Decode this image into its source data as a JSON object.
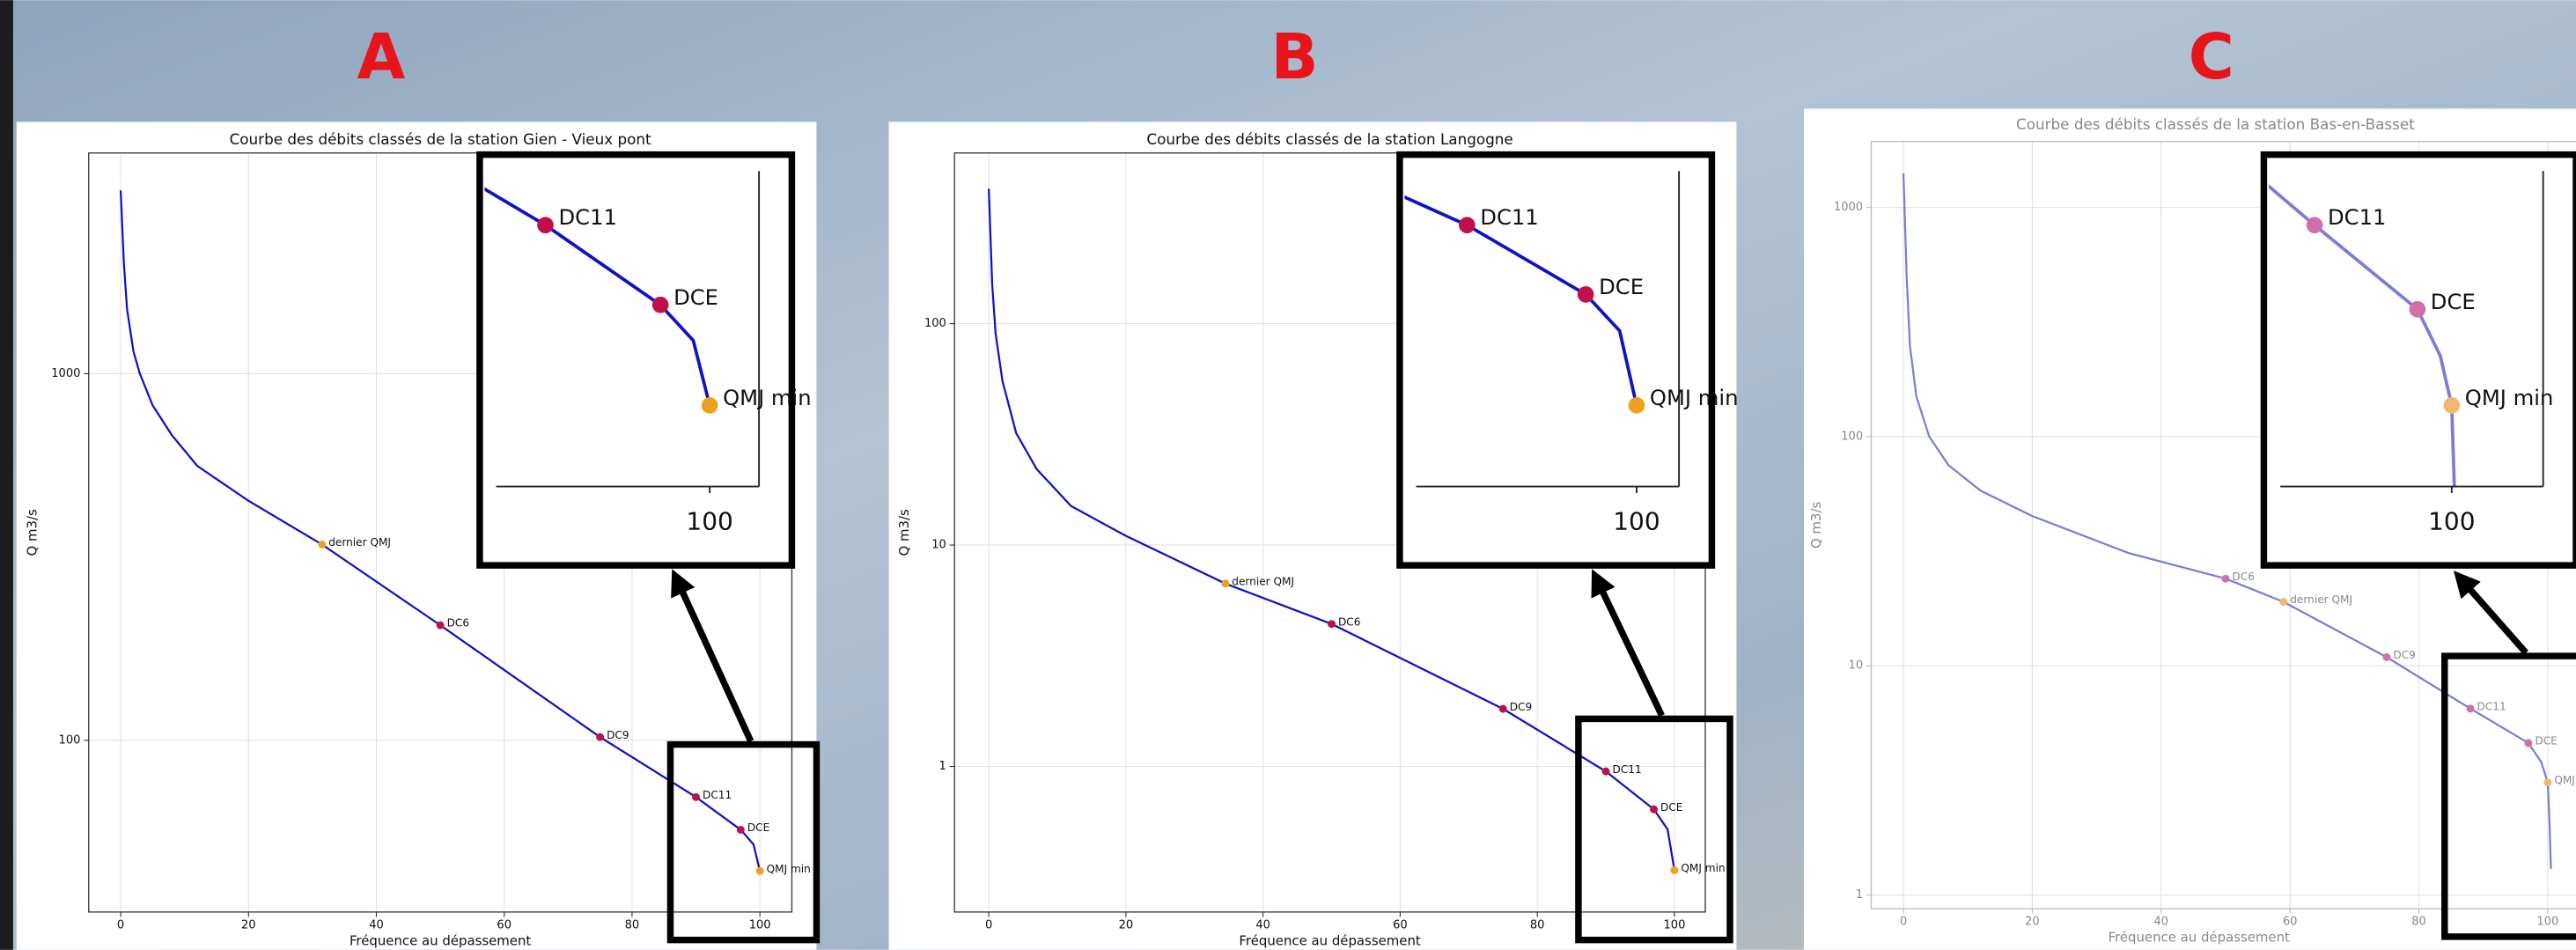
{
  "chart_data": [
    {
      "type": "line",
      "panel_label": "A",
      "title": "Courbe des débits classés de la station Gien - Vieux pont",
      "xlabel": "Fréquence au dépassement",
      "ylabel": "Q m3/s",
      "log_y": true,
      "grid": true,
      "color": "#1010c8",
      "xlim": [
        -5,
        105
      ],
      "ylim": [
        34,
        4000
      ],
      "xticks": [
        0,
        20,
        40,
        60,
        80,
        100
      ],
      "yticks": [
        100,
        1000
      ],
      "x": [
        0,
        0.5,
        1,
        2,
        3,
        5,
        8,
        12,
        20,
        31.5,
        50,
        75,
        90,
        97,
        99,
        100
      ],
      "y": [
        3160,
        2000,
        1500,
        1150,
        1000,
        820,
        680,
        560,
        450,
        342,
        206,
        102,
        70,
        57,
        52,
        44
      ],
      "points": [
        {
          "name": "dernier QMJ",
          "x": 31.5,
          "y": 342,
          "color": "#f0a020"
        },
        {
          "name": "DC6",
          "x": 50,
          "y": 206,
          "color": "#c0104a"
        },
        {
          "name": "DC9",
          "x": 75,
          "y": 102,
          "color": "#c0104a"
        },
        {
          "name": "DC11",
          "x": 90,
          "y": 70,
          "color": "#c0104a"
        },
        {
          "name": "DCE",
          "x": 97,
          "y": 57,
          "color": "#c0104a"
        },
        {
          "name": "QMJ min",
          "x": 100,
          "y": 44,
          "color": "#f0a020"
        }
      ]
    },
    {
      "type": "line",
      "panel_label": "B",
      "title": "Courbe des débits classés de la station Langogne",
      "xlabel": "Fréquence au dépassement",
      "ylabel": "Q m3/s",
      "log_y": true,
      "grid": true,
      "color": "#1010c8",
      "xlim": [
        -5,
        104.5
      ],
      "ylim": [
        0.22,
        590
      ],
      "xticks": [
        0,
        20,
        40,
        60,
        80,
        100
      ],
      "yticks": [
        1,
        10,
        100
      ],
      "x": [
        0,
        0.5,
        1,
        2,
        4,
        7,
        12,
        20,
        34.5,
        50,
        75,
        90,
        97,
        99,
        100
      ],
      "y": [
        407,
        150,
        90,
        55,
        32,
        22,
        15,
        11,
        6.7,
        4.4,
        1.82,
        0.95,
        0.64,
        0.52,
        0.34
      ],
      "points": [
        {
          "name": "dernier QMJ",
          "x": 34.5,
          "y": 6.7,
          "color": "#f0a020"
        },
        {
          "name": "DC6",
          "x": 50,
          "y": 4.4,
          "color": "#c0104a"
        },
        {
          "name": "DC9",
          "x": 75,
          "y": 1.82,
          "color": "#c0104a"
        },
        {
          "name": "DC11",
          "x": 90,
          "y": 0.95,
          "color": "#c0104a"
        },
        {
          "name": "DCE",
          "x": 97,
          "y": 0.64,
          "color": "#c0104a"
        },
        {
          "name": "QMJ min",
          "x": 100,
          "y": 0.34,
          "color": "#f0a020"
        }
      ]
    },
    {
      "type": "line",
      "panel_label": "C",
      "title": "Courbe des débits classés de la station Bas-en-Basset",
      "xlabel": "Fréquence au dépassement",
      "ylabel": "Q m3/s",
      "log_y": true,
      "grid": true,
      "color": "#7b7bdc",
      "xlim": [
        -5,
        110
      ],
      "ylim": [
        0.87,
        1940
      ],
      "xticks": [
        0,
        20,
        40,
        60,
        80,
        100
      ],
      "yticks": [
        1,
        10,
        100,
        1000
      ],
      "x": [
        0,
        0.5,
        1,
        2,
        4,
        7,
        12,
        20,
        35,
        50,
        59,
        75,
        88,
        97,
        99,
        100,
        100.3,
        100.5
      ],
      "y": [
        1410,
        500,
        250,
        150,
        100,
        75,
        58,
        45,
        31,
        24,
        19,
        10.9,
        6.5,
        4.6,
        3.8,
        3.1,
        2,
        1.3
      ],
      "points": [
        {
          "name": "DC6",
          "x": 50,
          "y": 24,
          "color": "#d070a8"
        },
        {
          "name": "dernier QMJ",
          "x": 59,
          "y": 19,
          "color": "#f0b870"
        },
        {
          "name": "DC9",
          "x": 75,
          "y": 10.9,
          "color": "#d070a8"
        },
        {
          "name": "DC11",
          "x": 88,
          "y": 6.5,
          "color": "#d070a8"
        },
        {
          "name": "DCE",
          "x": 97,
          "y": 4.6,
          "color": "#d070a8"
        },
        {
          "name": "QMJ min",
          "x": 100,
          "y": 3.1,
          "color": "#f0b870"
        }
      ]
    }
  ]
}
